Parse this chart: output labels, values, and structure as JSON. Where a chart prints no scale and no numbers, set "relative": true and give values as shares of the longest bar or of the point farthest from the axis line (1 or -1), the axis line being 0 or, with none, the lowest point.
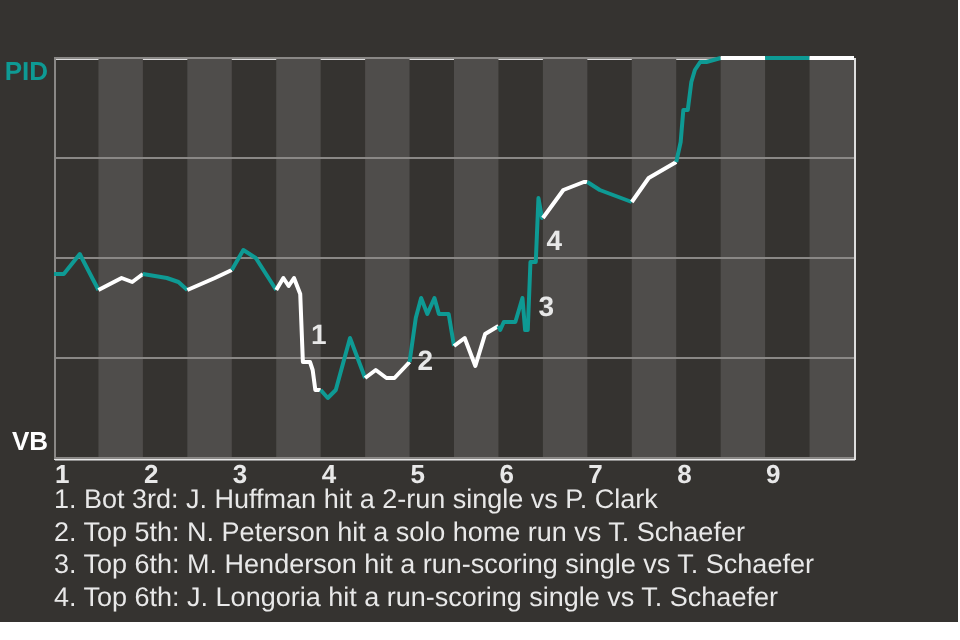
{
  "chart_data": {
    "type": "line",
    "relative": true,
    "xlim": [
      1,
      10
    ],
    "xticks": [
      1,
      2,
      3,
      4,
      5,
      6,
      7,
      8,
      9
    ],
    "grid": "y",
    "marker": "none",
    "line_style": "solid",
    "series": [
      {
        "color": "#0e9a94",
        "x": [
          1,
          1.11,
          1.29,
          1.5
        ],
        "values": [
          0.46,
          0.46,
          0.51,
          0.42
        ]
      },
      {
        "color": "#ffffff",
        "x": [
          1.5,
          1.76,
          1.88,
          2
        ],
        "values": [
          0.42,
          0.45,
          0.44,
          0.46
        ]
      },
      {
        "color": "#0e9a94",
        "x": [
          2,
          2.27,
          2.4,
          2.5
        ],
        "values": [
          0.46,
          0.45,
          0.44,
          0.42
        ]
      },
      {
        "color": "#ffffff",
        "x": [
          2.5,
          2.81,
          3
        ],
        "values": [
          0.42,
          0.45,
          0.47
        ]
      },
      {
        "color": "#0e9a94",
        "x": [
          3,
          3.13,
          3.27,
          3.5
        ],
        "values": [
          0.47,
          0.52,
          0.5,
          0.42
        ]
      },
      {
        "color": "#ffffff",
        "x": [
          3.5,
          3.58,
          3.64,
          3.7,
          3.77,
          3.8,
          3.88,
          3.91,
          3.94,
          4
        ],
        "values": [
          0.42,
          0.45,
          0.43,
          0.45,
          0.41,
          0.24,
          0.24,
          0.22,
          0.17,
          0.17
        ]
      },
      {
        "color": "#0e9a94",
        "x": [
          4,
          4.08,
          4.17,
          4.33,
          4.5
        ],
        "values": [
          0.17,
          0.15,
          0.17,
          0.3,
          0.2
        ]
      },
      {
        "color": "#ffffff",
        "x": [
          4.5,
          4.62,
          4.74,
          4.83,
          5
        ],
        "values": [
          0.2,
          0.22,
          0.2,
          0.2,
          0.24
        ]
      },
      {
        "color": "#0e9a94",
        "x": [
          5,
          5.07,
          5.13,
          5.2,
          5.28,
          5.33,
          5.44,
          5.5
        ],
        "values": [
          0.24,
          0.35,
          0.4,
          0.36,
          0.4,
          0.36,
          0.36,
          0.28
        ]
      },
      {
        "color": "#ffffff",
        "x": [
          5.5,
          5.62,
          5.74,
          5.85,
          6
        ],
        "values": [
          0.28,
          0.3,
          0.23,
          0.31,
          0.33
        ]
      },
      {
        "color": "#0e9a94",
        "x": [
          6,
          6.02,
          6.06,
          6.19,
          6.27,
          6.3,
          6.33,
          6.36,
          6.42,
          6.45,
          6.49,
          6.5
        ],
        "values": [
          0.33,
          0.32,
          0.34,
          0.34,
          0.4,
          0.32,
          0.32,
          0.49,
          0.49,
          0.65,
          0.6,
          0.6
        ]
      },
      {
        "color": "#ffffff",
        "x": [
          6.5,
          6.73,
          6.96,
          7
        ],
        "values": [
          0.6,
          0.67,
          0.69,
          0.69
        ]
      },
      {
        "color": "#0e9a94",
        "x": [
          7,
          7.14,
          7.5
        ],
        "values": [
          0.69,
          0.67,
          0.64
        ]
      },
      {
        "color": "#ffffff",
        "x": [
          7.5,
          7.69,
          8
        ],
        "values": [
          0.64,
          0.7,
          0.74
        ]
      },
      {
        "color": "#0e9a94",
        "x": [
          8,
          8.05,
          8.08,
          8.13,
          8.17,
          8.21,
          8.27,
          8.34,
          8.5
        ],
        "values": [
          0.74,
          0.79,
          0.87,
          0.87,
          0.94,
          0.97,
          0.99,
          0.99,
          1
        ]
      },
      {
        "color": "#ffffff",
        "x": [
          8.5,
          9
        ],
        "values": [
          1,
          1
        ]
      },
      {
        "color": "#0e9a94",
        "x": [
          9,
          9.5
        ],
        "values": [
          1,
          1
        ]
      },
      {
        "color": "#ffffff",
        "x": [
          9.5,
          10
        ],
        "values": [
          1,
          1
        ]
      }
    ],
    "bands": [
      {
        "axis": "x",
        "from": 1.5,
        "to": 2,
        "color": "#4f4d4b"
      },
      {
        "axis": "x",
        "from": 2.5,
        "to": 3,
        "color": "#4f4d4b"
      },
      {
        "axis": "x",
        "from": 3.5,
        "to": 4,
        "color": "#4f4d4b"
      },
      {
        "axis": "x",
        "from": 4.5,
        "to": 5,
        "color": "#4f4d4b"
      },
      {
        "axis": "x",
        "from": 5.5,
        "to": 6,
        "color": "#4f4d4b"
      },
      {
        "axis": "x",
        "from": 6.5,
        "to": 7,
        "color": "#4f4d4b"
      },
      {
        "axis": "x",
        "from": 7.5,
        "to": 8,
        "color": "#4f4d4b"
      },
      {
        "axis": "x",
        "from": 8.5,
        "to": 9,
        "color": "#4f4d4b"
      },
      {
        "axis": "x",
        "from": 9.5,
        "to": 10,
        "color": "#4f4d4b"
      }
    ],
    "annotations": [
      "PID",
      "VB",
      {
        "text": "1",
        "x": 3.8,
        "y": 0.305
      },
      {
        "text": "2",
        "x": 5,
        "y": 0.24
      },
      {
        "text": "3",
        "x": 6.36,
        "y": 0.375
      },
      {
        "text": "4",
        "x": 6.45,
        "y": 0.54
      },
      "1. Bot 3rd: J. Huffman hit a 2-run single vs P. Clark",
      "2. Top 5th: N. Peterson hit a solo home run vs T. Schaefer",
      "3. Top 6th: M. Henderson hit a run-scoring single vs T. Schaefer",
      "4. Top 6th: J. Longoria hit a run-scoring single vs T. Schaefer"
    ]
  }
}
